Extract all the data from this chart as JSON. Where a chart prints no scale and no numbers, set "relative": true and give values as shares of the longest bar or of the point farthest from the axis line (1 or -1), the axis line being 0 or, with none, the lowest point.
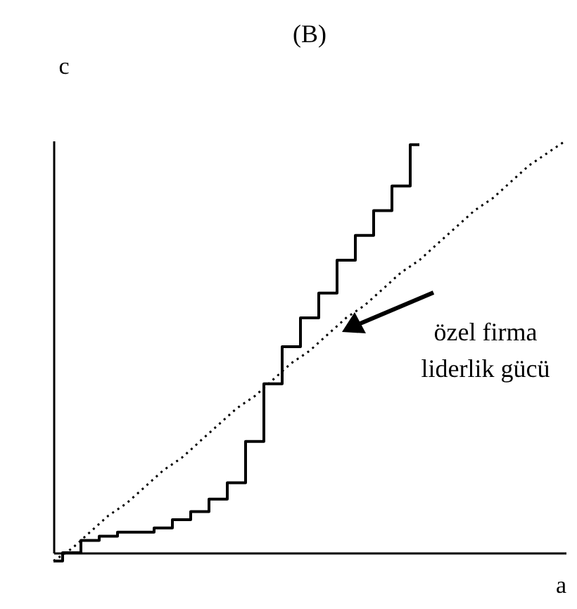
{
  "chart_data": {
    "type": "step",
    "title": "(B)",
    "xlabel": "a",
    "ylabel": "c",
    "relative": true,
    "legend": false,
    "grid": false,
    "categories": [
      null,
      null,
      null,
      null,
      null,
      null,
      null,
      null,
      null,
      null,
      null,
      null,
      null,
      null,
      null,
      null,
      null,
      null,
      null,
      null,
      null,
      null,
      null,
      null,
      null,
      null,
      null,
      null,
      null
    ],
    "series": [
      {
        "type": "step",
        "color": "#000000",
        "line_style": "solid",
        "values": [
          -0.02,
          0,
          0.03,
          0.04,
          0.05,
          0.05,
          0.06,
          0.08,
          0.1,
          0.13,
          0.17,
          0.27,
          0.41,
          0.5,
          0.57,
          0.63,
          0.71,
          0.77,
          0.83,
          0.89,
          0.99,
          null,
          null,
          null,
          null,
          null,
          null,
          null,
          null
        ]
      },
      {
        "type": "line",
        "color": "#000000",
        "line_style": "dotted",
        "values": [
          -0.02,
          0.01,
          0.05,
          0.09,
          0.12,
          0.16,
          0.2,
          0.23,
          0.27,
          0.31,
          0.35,
          0.38,
          0.42,
          0.46,
          0.49,
          0.53,
          0.57,
          0.6,
          0.64,
          0.68,
          0.71,
          0.75,
          0.79,
          0.83,
          0.86,
          0.9,
          0.94,
          0.97,
          1.0
        ]
      }
    ],
    "annotations": [
      "özel firma\nliderlik gücü"
    ]
  }
}
